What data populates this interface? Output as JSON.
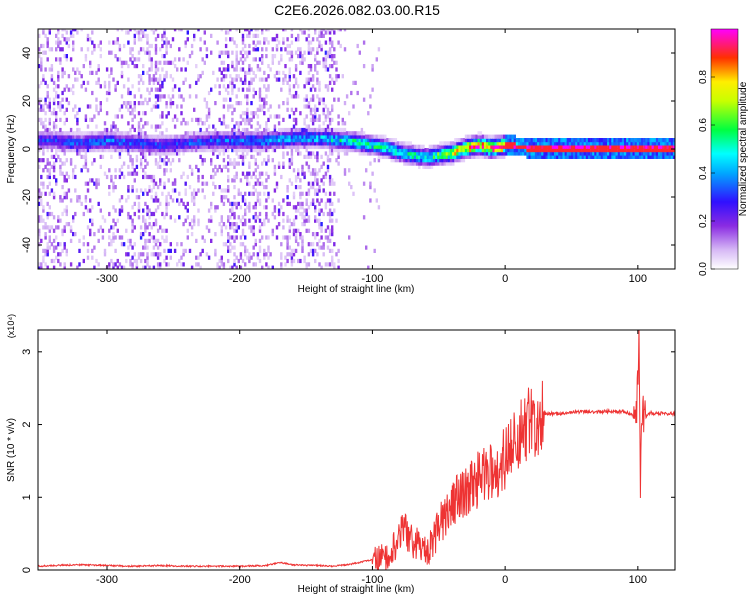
{
  "title": "C2E6.2026.082.03.00.R15",
  "chart_data": [
    {
      "type": "heatmap",
      "title": "",
      "xlabel": "Height of straight line (km)",
      "ylabel": "Frequency (Hz)",
      "xlim": [
        -352,
        128
      ],
      "ylim": [
        -50,
        50
      ],
      "xticks": [
        -300,
        -200,
        -100,
        0,
        100
      ],
      "yticks": [
        -40,
        -20,
        0,
        20,
        40
      ],
      "colorbar": {
        "label": "Normalized spectral amplitude",
        "range": [
          0,
          1
        ],
        "ticks": [
          "0.0",
          "0.2",
          "0.4",
          "0.6",
          "0.8"
        ],
        "colormap": "white-purple-blue-cyan-green-yellow-red-magenta"
      },
      "ridge": {
        "center_frequency_hz": [
          {
            "x": -340,
            "y": 3
          },
          {
            "x": -320,
            "y": 2
          },
          {
            "x": -300,
            "y": 3
          },
          {
            "x": -280,
            "y": 2
          },
          {
            "x": -260,
            "y": 1
          },
          {
            "x": -240,
            "y": 2
          },
          {
            "x": -220,
            "y": 3
          },
          {
            "x": -200,
            "y": 3
          },
          {
            "x": -180,
            "y": 3
          },
          {
            "x": -160,
            "y": 4
          },
          {
            "x": -140,
            "y": 4
          },
          {
            "x": -120,
            "y": 3
          },
          {
            "x": -100,
            "y": 1
          },
          {
            "x": -90,
            "y": 0
          },
          {
            "x": -80,
            "y": -2
          },
          {
            "x": -70,
            "y": -3
          },
          {
            "x": -60,
            "y": -4
          },
          {
            "x": -50,
            "y": -3
          },
          {
            "x": -40,
            "y": -2
          },
          {
            "x": -30,
            "y": 0
          },
          {
            "x": -20,
            "y": 1
          },
          {
            "x": -10,
            "y": 0
          },
          {
            "x": 0,
            "y": 1
          },
          {
            "x": 20,
            "y": 0
          },
          {
            "x": 60,
            "y": 0
          },
          {
            "x": 100,
            "y": 0
          },
          {
            "x": 128,
            "y": 0
          }
        ],
        "amplitude": [
          {
            "x": -340,
            "y": 0.3
          },
          {
            "x": -300,
            "y": 0.35
          },
          {
            "x": -260,
            "y": 0.3
          },
          {
            "x": -220,
            "y": 0.32
          },
          {
            "x": -180,
            "y": 0.38
          },
          {
            "x": -140,
            "y": 0.42
          },
          {
            "x": -120,
            "y": 0.5
          },
          {
            "x": -100,
            "y": 0.5
          },
          {
            "x": -80,
            "y": 0.5
          },
          {
            "x": -60,
            "y": 0.5
          },
          {
            "x": -40,
            "y": 0.7
          },
          {
            "x": -20,
            "y": 0.9
          },
          {
            "x": 0,
            "y": 0.95
          },
          {
            "x": 128,
            "y": 1.0
          }
        ]
      }
    },
    {
      "type": "line",
      "title": "",
      "xlabel": "Height of straight line (km)",
      "ylabel": "SNR (10 * v/v)",
      "y_multiplier": "(x10⁴)",
      "xlim": [
        -352,
        128
      ],
      "ylim": [
        0,
        3.3
      ],
      "xticks": [
        -300,
        -200,
        -100,
        0,
        100
      ],
      "yticks": [
        0,
        1,
        2,
        3
      ],
      "series": [
        {
          "color": "#ee3333",
          "x": [
            -352,
            -340,
            -320,
            -300,
            -280,
            -260,
            -240,
            -220,
            -200,
            -180,
            -170,
            -160,
            -150,
            -140,
            -130,
            -120,
            -110,
            -100,
            -95,
            -90,
            -85,
            -80,
            -75,
            -70,
            -65,
            -60,
            -55,
            -50,
            -45,
            -40,
            -35,
            -30,
            -25,
            -20,
            -15,
            -10,
            -5,
            0,
            5,
            10,
            15,
            20,
            25,
            30,
            40,
            50,
            60,
            70,
            80,
            90,
            95,
            98,
            100,
            101,
            102,
            103,
            105,
            110,
            120,
            128
          ],
          "y": [
            0.03,
            0.04,
            0.05,
            0.04,
            0.03,
            0.04,
            0.03,
            0.03,
            0.03,
            0.04,
            0.08,
            0.05,
            0.04,
            0.04,
            0.03,
            0.05,
            0.08,
            0.12,
            0.15,
            0.18,
            0.3,
            0.45,
            0.55,
            0.4,
            0.35,
            0.25,
            0.35,
            0.6,
            0.75,
            0.9,
            1.0,
            1.1,
            1.15,
            1.25,
            1.3,
            1.35,
            1.4,
            1.55,
            1.65,
            1.8,
            1.95,
            2.05,
            2.1,
            2.15,
            2.15,
            2.17,
            2.18,
            2.18,
            2.18,
            2.18,
            2.15,
            2.05,
            2.5,
            3.3,
            1.0,
            2.2,
            2.1,
            2.16,
            2.15,
            2.15
          ]
        }
      ]
    }
  ]
}
